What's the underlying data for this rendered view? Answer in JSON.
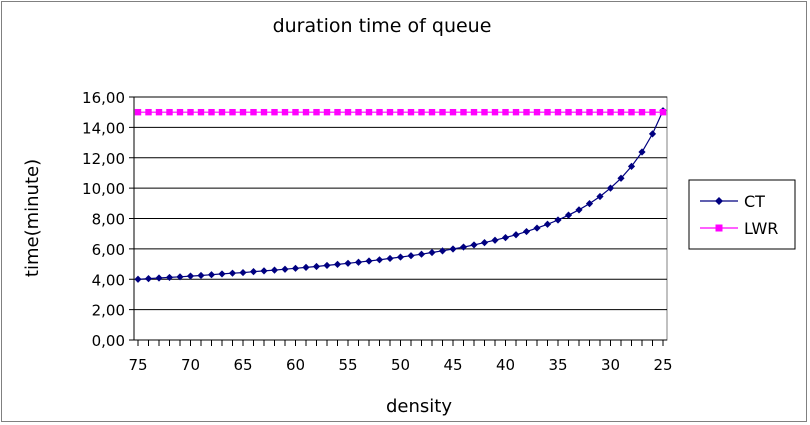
{
  "chart_data": {
    "type": "line",
    "title": "duration  time  of  queue",
    "xlabel": "density",
    "ylabel": "time(minute)",
    "x_reversed": true,
    "x": [
      75,
      74,
      73,
      72,
      71,
      70,
      69,
      68,
      67,
      66,
      65,
      64,
      63,
      62,
      61,
      60,
      59,
      58,
      57,
      56,
      55,
      54,
      53,
      52,
      51,
      50,
      49,
      48,
      47,
      46,
      45,
      44,
      43,
      42,
      41,
      40,
      39,
      38,
      37,
      36,
      35,
      34,
      33,
      32,
      31,
      30,
      29,
      28,
      27,
      26,
      25
    ],
    "x_ticks": [
      75,
      70,
      65,
      60,
      55,
      50,
      45,
      40,
      35,
      30,
      25
    ],
    "x_tick_labels": [
      "75",
      "70",
      "65",
      "60",
      "55",
      "50",
      "45",
      "40",
      "35",
      "30",
      "25"
    ],
    "y_ticks": [
      0,
      2,
      4,
      6,
      8,
      10,
      12,
      14,
      16
    ],
    "y_tick_labels": [
      "0,00",
      "2,00",
      "4,00",
      "6,00",
      "8,00",
      "10,00",
      "12,00",
      "14,00",
      "16,00"
    ],
    "ylim": [
      0,
      16
    ],
    "grid": "horizontal",
    "legend_position": "right",
    "series": [
      {
        "name": "CT",
        "color": "#000080",
        "marker": "diamond",
        "values": [
          4.0,
          4.04,
          4.08,
          4.12,
          4.16,
          4.21,
          4.25,
          4.3,
          4.35,
          4.4,
          4.44,
          4.5,
          4.55,
          4.6,
          4.66,
          4.72,
          4.78,
          4.84,
          4.91,
          4.98,
          5.05,
          5.12,
          5.2,
          5.28,
          5.37,
          5.46,
          5.55,
          5.65,
          5.76,
          5.87,
          5.99,
          6.12,
          6.26,
          6.41,
          6.57,
          6.74,
          6.93,
          7.14,
          7.37,
          7.62,
          7.9,
          8.22,
          8.57,
          8.98,
          9.45,
          10.0,
          10.65,
          11.43,
          12.38,
          13.57,
          15.1
        ]
      },
      {
        "name": "LWR",
        "color": "#ff00ff",
        "marker": "square",
        "values": [
          15,
          15,
          15,
          15,
          15,
          15,
          15,
          15,
          15,
          15,
          15,
          15,
          15,
          15,
          15,
          15,
          15,
          15,
          15,
          15,
          15,
          15,
          15,
          15,
          15,
          15,
          15,
          15,
          15,
          15,
          15,
          15,
          15,
          15,
          15,
          15,
          15,
          15,
          15,
          15,
          15,
          15,
          15,
          15,
          15,
          15,
          15,
          15,
          15,
          15,
          15
        ]
      }
    ]
  }
}
